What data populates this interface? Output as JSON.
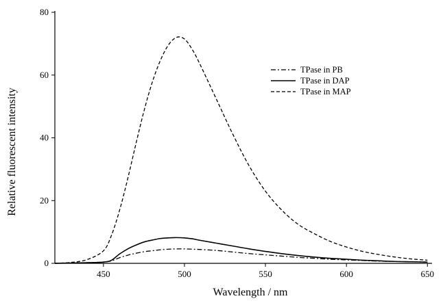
{
  "chart_data": {
    "type": "line",
    "xlabel": "Wavelength / nm",
    "ylabel": "Relative fluorescent intensity",
    "xlim": [
      420,
      652
    ],
    "ylim": [
      0,
      80
    ],
    "xticks": [
      450,
      500,
      550,
      600,
      650
    ],
    "yticks": [
      0,
      20,
      40,
      60,
      80
    ],
    "grid": false,
    "legend_position": "top-right",
    "x": [
      420,
      430,
      440,
      450,
      455,
      460,
      465,
      470,
      475,
      480,
      485,
      490,
      495,
      500,
      505,
      510,
      520,
      530,
      540,
      550,
      560,
      570,
      580,
      590,
      600,
      610,
      620,
      630,
      640,
      650
    ],
    "series": [
      {
        "name": "TPase in PB",
        "style": "dashdot",
        "color": "#000000",
        "values": [
          0,
          0.1,
          0.2,
          0.4,
          0.8,
          1.8,
          2.6,
          3.2,
          3.7,
          4.0,
          4.3,
          4.5,
          4.6,
          4.6,
          4.5,
          4.4,
          4.1,
          3.6,
          3.1,
          2.7,
          2.3,
          1.9,
          1.6,
          1.3,
          1.1,
          0.9,
          0.7,
          0.6,
          0.5,
          0.4
        ]
      },
      {
        "name": "TPase in DAP",
        "style": "solid",
        "color": "#000000",
        "values": [
          0,
          0.1,
          0.2,
          0.4,
          1.0,
          3.0,
          4.6,
          5.8,
          6.8,
          7.4,
          7.9,
          8.1,
          8.2,
          8.1,
          7.8,
          7.3,
          6.4,
          5.5,
          4.6,
          3.8,
          3.1,
          2.5,
          2.0,
          1.6,
          1.3,
          1.0,
          0.8,
          0.6,
          0.5,
          0.4
        ]
      },
      {
        "name": "TPase in MAP",
        "style": "dashed",
        "color": "#000000",
        "values": [
          0,
          0.3,
          1.2,
          4.0,
          9.0,
          17.0,
          27.0,
          38.0,
          48.5,
          57.5,
          64.5,
          69.5,
          72.0,
          71.5,
          68.0,
          63.0,
          52.0,
          41.0,
          31.0,
          23.0,
          17.0,
          12.5,
          9.5,
          7.0,
          5.2,
          3.8,
          2.8,
          2.0,
          1.4,
          1.0
        ]
      }
    ]
  }
}
